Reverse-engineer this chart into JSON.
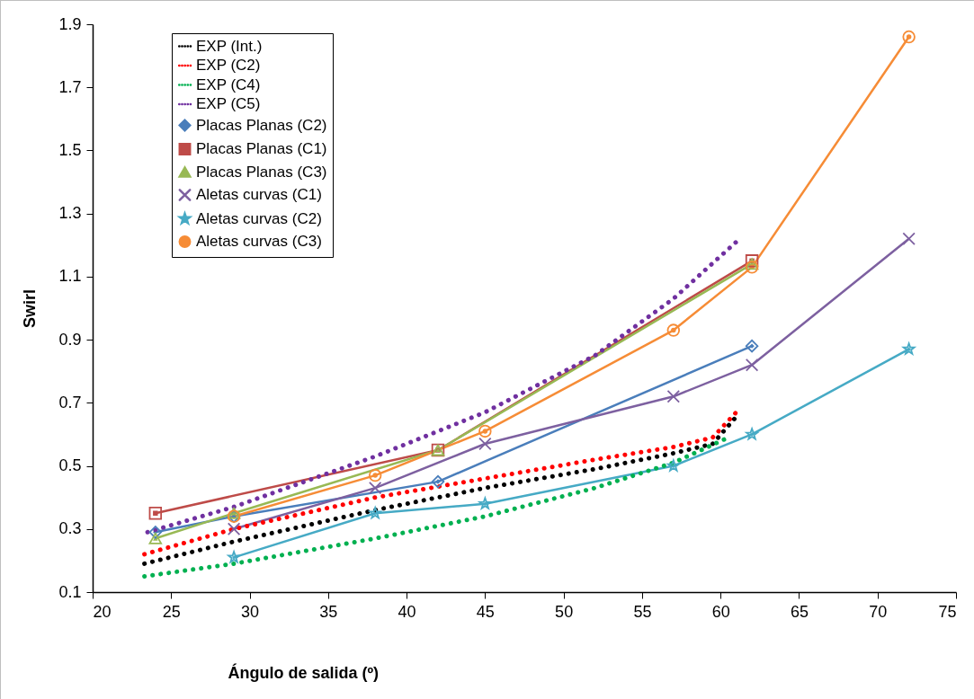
{
  "chart_data": {
    "type": "line",
    "xlabel": "Ángulo de salida (º)",
    "ylabel": "Swirl",
    "xlim": [
      20,
      75
    ],
    "xticks": [
      20,
      25,
      30,
      35,
      40,
      45,
      50,
      55,
      60,
      65,
      70,
      75
    ],
    "ylim": [
      0.1,
      1.9
    ],
    "yticks": [
      0.1,
      0.3,
      0.5,
      0.7,
      0.9,
      1.1,
      1.3,
      1.5,
      1.7,
      1.9
    ],
    "legend": "top left",
    "grid": false,
    "series": [
      {
        "name": "EXP (Int.)",
        "color": "#000000",
        "line_style": "dotted",
        "marker": "none",
        "x": [
          23.3,
          29,
          38,
          45,
          52,
          57,
          59.5,
          60.9
        ],
        "values": [
          0.19,
          0.26,
          0.36,
          0.43,
          0.49,
          0.54,
          0.57,
          0.65
        ]
      },
      {
        "name": "EXP (C2)",
        "color": "#ff0000",
        "line_style": "dotted",
        "marker": "none",
        "x": [
          23.3,
          29,
          38,
          45,
          52,
          57,
          59.5,
          61
        ],
        "values": [
          0.22,
          0.3,
          0.4,
          0.46,
          0.52,
          0.56,
          0.59,
          0.67
        ]
      },
      {
        "name": "EXP (C4)",
        "color": "#00b050",
        "line_style": "dotted",
        "marker": "none",
        "x": [
          23.3,
          29,
          38,
          45,
          52,
          57,
          60.5
        ],
        "values": [
          0.15,
          0.19,
          0.27,
          0.34,
          0.43,
          0.51,
          0.59
        ]
      },
      {
        "name": "EXP (C5)",
        "color": "#7030a0",
        "line_style": "dotted",
        "marker": "none",
        "x": [
          23.5,
          29,
          38,
          45,
          52,
          57,
          61
        ],
        "values": [
          0.29,
          0.37,
          0.53,
          0.67,
          0.85,
          1.03,
          1.21
        ]
      },
      {
        "name": "Placas Planas (C2)",
        "color": "#4a7ebb",
        "line_style": "solid",
        "marker": "diamond",
        "x": [
          24,
          29,
          42,
          62
        ],
        "values": [
          0.29,
          0.34,
          0.45,
          0.88
        ]
      },
      {
        "name": "Placas Planas (C1)",
        "color": "#be4b48",
        "line_style": "solid",
        "marker": "square",
        "x": [
          24,
          42,
          62
        ],
        "values": [
          0.35,
          0.55,
          1.15
        ]
      },
      {
        "name": "Placas Planas (C3)",
        "color": "#98b954",
        "line_style": "solid",
        "marker": "triangle",
        "x": [
          24,
          29,
          42,
          62
        ],
        "values": [
          0.27,
          0.35,
          0.55,
          1.14
        ]
      },
      {
        "name": "Aletas curvas (C1)",
        "color": "#7d60a0",
        "line_style": "solid",
        "marker": "cross",
        "x": [
          29,
          38,
          45,
          57,
          62,
          72
        ],
        "values": [
          0.3,
          0.43,
          0.57,
          0.72,
          0.82,
          1.22
        ]
      },
      {
        "name": "Aletas curvas (C2)",
        "color": "#46aac5",
        "line_style": "solid",
        "marker": "star",
        "x": [
          29,
          38,
          45,
          57,
          62,
          72
        ],
        "values": [
          0.21,
          0.35,
          0.38,
          0.5,
          0.6,
          0.87
        ]
      },
      {
        "name": "Aletas curvas (C3)",
        "color": "#f68c36",
        "line_style": "solid",
        "marker": "circle",
        "x": [
          29,
          38,
          45,
          57,
          62,
          72
        ],
        "values": [
          0.34,
          0.47,
          0.61,
          0.93,
          1.13,
          1.86
        ]
      }
    ]
  }
}
